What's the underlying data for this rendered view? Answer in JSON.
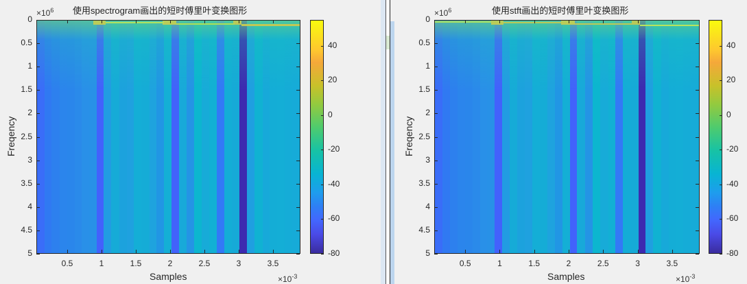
{
  "chart_data": [
    {
      "type": "heatmap",
      "title": "使用spectrogram画出的短时傅里叶变换图形",
      "xlabel": "Samples",
      "ylabel": "Freqency",
      "x_exponent": "×10^-3",
      "y_exponent": "×10^6",
      "xlim": [
        0.05,
        3.9
      ],
      "ylim": [
        0,
        5
      ],
      "x_ticks": [
        "0.5",
        "1",
        "1.5",
        "2",
        "2.5",
        "3",
        "3.5"
      ],
      "y_ticks": [
        "0",
        "0.5",
        "1",
        "1.5",
        "2",
        "2.5",
        "3",
        "3.5",
        "4",
        "4.5",
        "5"
      ],
      "colorbar": {
        "ticks": [
          "40",
          "20",
          "0",
          "-20",
          "-40",
          "-60",
          "-80"
        ],
        "range": [
          -80,
          55
        ],
        "colormap": "parula"
      },
      "notes": "Power (dB) high (~40) near 0 Hz in narrow band; dark vertical stripes (low power) at ~0.9, ~1.9, ~2.7 and ~3.05 ms"
    },
    {
      "type": "heatmap",
      "title": "使用stft画出的短时傅里叶变换图形",
      "xlabel": "Samples",
      "ylabel": "Freqency",
      "x_exponent": "×10^-3",
      "y_exponent": "×10^6",
      "xlim": [
        0.05,
        3.9
      ],
      "ylim": [
        0,
        5
      ],
      "x_ticks": [
        "0.5",
        "1",
        "1.5",
        "2",
        "2.5",
        "3",
        "3.5"
      ],
      "y_ticks": [
        "0",
        "0.5",
        "1",
        "1.5",
        "2",
        "2.5",
        "3",
        "3.5",
        "4",
        "4.5",
        "5"
      ],
      "colorbar": {
        "ticks": [
          "40",
          "20",
          "0",
          "-20",
          "-40",
          "-60",
          "-80"
        ],
        "range": [
          -80,
          55
        ],
        "colormap": "parula"
      },
      "notes": "Nearly identical to spectrogram plot"
    }
  ],
  "left": {
    "title": "使用spectrogram画出的短时傅里叶变换图形",
    "ylabel": "Freqency",
    "xlabel": "Samples",
    "y_exp_base": "×10",
    "y_exp_pow": "6",
    "x_exp_base": "×10",
    "x_exp_pow": "-3"
  },
  "right": {
    "title": "使用stft画出的短时傅里叶变换图形",
    "ylabel": "Freqency",
    "xlabel": "Samples",
    "y_exp_base": "×10",
    "y_exp_pow": "6",
    "x_exp_base": "×10",
    "x_exp_pow": "-3"
  },
  "yticks": [
    "0",
    "0.5",
    "1",
    "1.5",
    "2",
    "2.5",
    "3",
    "3.5",
    "4",
    "4.5",
    "5"
  ],
  "xticks": [
    "0.5",
    "1",
    "1.5",
    "2",
    "2.5",
    "3",
    "3.5"
  ],
  "cbticks": [
    "40",
    "20",
    "0",
    "-20",
    "-40",
    "-60",
    "-80"
  ],
  "columns": [
    {
      "w": 10,
      "c": "#3a6df8"
    },
    {
      "w": 10,
      "c": "#3079f2"
    },
    {
      "w": 11,
      "c": "#2d80ee"
    },
    {
      "w": 10,
      "c": "#2b85ec"
    },
    {
      "w": 10,
      "c": "#2a86eb"
    },
    {
      "w": 10,
      "c": "#2a8aea"
    },
    {
      "w": 10,
      "c": "#2990e8"
    },
    {
      "w": 10,
      "c": "#2891e7"
    },
    {
      "w": 10,
      "c": "#4361fc"
    },
    {
      "w": 10,
      "c": "#229ce2"
    },
    {
      "w": 11,
      "c": "#16abd7"
    },
    {
      "w": 10,
      "c": "#1ca2dd"
    },
    {
      "w": 10,
      "c": "#1fa1df"
    },
    {
      "w": 10,
      "c": "#14aed6"
    },
    {
      "w": 11,
      "c": "#15acd6"
    },
    {
      "w": 10,
      "c": "#1ea3de"
    },
    {
      "w": 10,
      "c": "#2196e4"
    },
    {
      "w": 10,
      "c": "#14afd5"
    },
    {
      "w": 10,
      "c": "#4262fb"
    },
    {
      "w": 11,
      "c": "#18a9d9"
    },
    {
      "w": 10,
      "c": "#2494e5"
    },
    {
      "w": 10,
      "c": "#0cb6cf"
    },
    {
      "w": 11,
      "c": "#17abd8"
    },
    {
      "w": 10,
      "c": "#12b0d4"
    },
    {
      "w": 10,
      "c": "#3379f6"
    },
    {
      "w": 10,
      "c": "#14add6"
    },
    {
      "w": 11,
      "c": "#16aad7"
    },
    {
      "w": 10,
      "c": "#3d2ab0"
    },
    {
      "w": 10,
      "c": "#1f9fe0"
    },
    {
      "w": 11,
      "c": "#10b2d2"
    },
    {
      "w": 10,
      "c": "#17a9d9"
    },
    {
      "w": 10,
      "c": "#14add6"
    },
    {
      "w": 10,
      "c": "#14aed6"
    },
    {
      "w": 10,
      "c": "#15acd7"
    },
    {
      "w": 11,
      "c": "#16abd8"
    }
  ],
  "hot_spots": [
    {
      "x": 82,
      "w": 18,
      "c": "#f9c63a"
    },
    {
      "x": 183,
      "w": 20,
      "c": "#f9c63a"
    },
    {
      "x": 285,
      "w": 12,
      "c": "#f6c03b"
    }
  ]
}
